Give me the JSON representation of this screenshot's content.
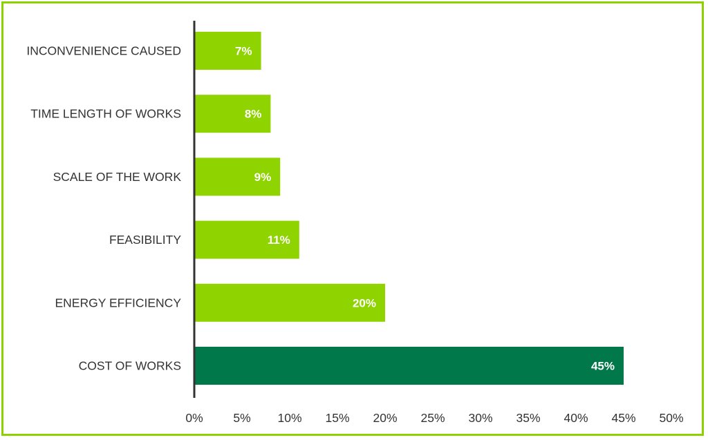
{
  "chart_data": {
    "type": "bar",
    "orientation": "horizontal",
    "categories": [
      "INCONVENIENCE CAUSED",
      "TIME LENGTH OF WORKS",
      "SCALE OF THE WORK",
      "FEASIBILITY",
      "ENERGY EFFICIENCY",
      "COST OF WORKS"
    ],
    "values": [
      7,
      8,
      9,
      11,
      20,
      45
    ],
    "data_labels": [
      "7%",
      "8%",
      "9%",
      "11%",
      "20%",
      "45%"
    ],
    "xlim": [
      0,
      50
    ],
    "x_ticks": [
      0,
      5,
      10,
      15,
      20,
      25,
      30,
      35,
      40,
      45,
      50
    ],
    "x_tick_labels": [
      "0%",
      "5%",
      "10%",
      "15%",
      "20%",
      "25%",
      "30%",
      "35%",
      "40%",
      "45%",
      "50%"
    ],
    "grid": false,
    "colors": {
      "default_bar": "#8fd300",
      "highlight_bar": "#00784a",
      "frame": "#8ed100",
      "axis": "#333333"
    },
    "highlight_index": 5
  }
}
